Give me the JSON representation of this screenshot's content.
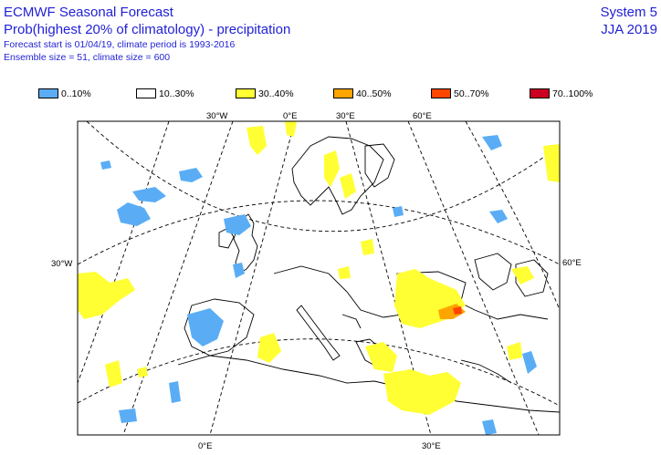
{
  "title": {
    "line1": "ECMWF Seasonal Forecast",
    "line2": "Prob(highest 20% of climatology) - precipitation",
    "line3": "Forecast start is 01/04/19, climate period is 1993-2016",
    "line4": "Ensemble size = 51, climate size = 600"
  },
  "system": {
    "name": "System 5",
    "season": "JJA 2019"
  },
  "legend": [
    {
      "label": "0..10%",
      "color": "#5aadf5"
    },
    {
      "label": "10..30%",
      "color": "#ffffff"
    },
    {
      "label": "30..40%",
      "color": "#ffff33"
    },
    {
      "label": "40..50%",
      "color": "#ffa500"
    },
    {
      "label": "50..70%",
      "color": "#ff4500"
    },
    {
      "label": "70..100%",
      "color": "#cc0022"
    }
  ],
  "graticule_labels": {
    "top_30w": "30°W",
    "top_0e": "0°E",
    "top_30e": "30°E",
    "top_60e": "60°E",
    "left_30w": "30°W",
    "right_60e": "60°E",
    "bottom_0e": "0°E",
    "bottom_30e": "30°E"
  }
}
